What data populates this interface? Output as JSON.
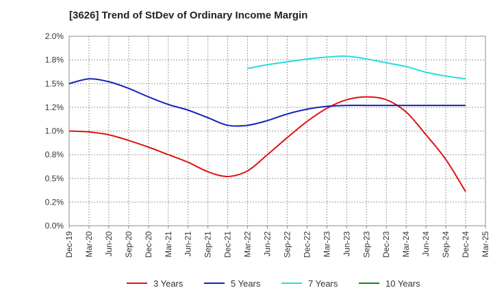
{
  "chart_data": {
    "type": "line",
    "title": "[3626]  Trend of StDev of Ordinary Income Margin",
    "xlabel": "",
    "ylabel": "",
    "ylim": [
      0,
      2.0
    ],
    "yticks": [
      "0.0%",
      "0.2%",
      "0.5%",
      "0.8%",
      "1.0%",
      "1.2%",
      "1.5%",
      "1.8%",
      "2.0%"
    ],
    "categories": [
      "Dec-19",
      "Mar-20",
      "Jun-20",
      "Sep-20",
      "Dec-20",
      "Mar-21",
      "Jun-21",
      "Sep-21",
      "Dec-21",
      "Mar-22",
      "Jun-22",
      "Sep-22",
      "Dec-22",
      "Mar-23",
      "Jun-23",
      "Sep-23",
      "Dec-23",
      "Mar-24",
      "Jun-24",
      "Sep-24",
      "Dec-24",
      "Mar-25"
    ],
    "grid": true,
    "legend_position": "bottom",
    "series": [
      {
        "name": "3 Years",
        "color": "#dd1111",
        "values": [
          1.0,
          0.99,
          0.96,
          0.9,
          0.83,
          0.75,
          0.67,
          0.57,
          0.52,
          0.58,
          0.75,
          0.93,
          1.1,
          1.24,
          1.33,
          1.36,
          1.33,
          1.2,
          0.96,
          0.7,
          0.36,
          null
        ]
      },
      {
        "name": "5 Years",
        "color": "#1122bb",
        "values": [
          1.5,
          1.55,
          1.52,
          1.45,
          1.36,
          1.28,
          1.22,
          1.14,
          1.06,
          1.06,
          1.11,
          1.18,
          1.23,
          1.26,
          1.27,
          1.27,
          1.27,
          1.27,
          1.27,
          1.27,
          1.27,
          null
        ]
      },
      {
        "name": "7 Years",
        "color": "#22dddd",
        "values": [
          null,
          null,
          null,
          null,
          null,
          null,
          null,
          null,
          null,
          1.66,
          1.7,
          1.73,
          1.76,
          1.78,
          1.79,
          1.76,
          1.72,
          1.68,
          1.62,
          1.58,
          1.55,
          null
        ]
      },
      {
        "name": "10 Years",
        "color": "#118811",
        "values": [
          null,
          null,
          null,
          null,
          null,
          null,
          null,
          null,
          null,
          null,
          null,
          null,
          null,
          null,
          null,
          null,
          null,
          null,
          null,
          null,
          null,
          null
        ]
      }
    ]
  }
}
